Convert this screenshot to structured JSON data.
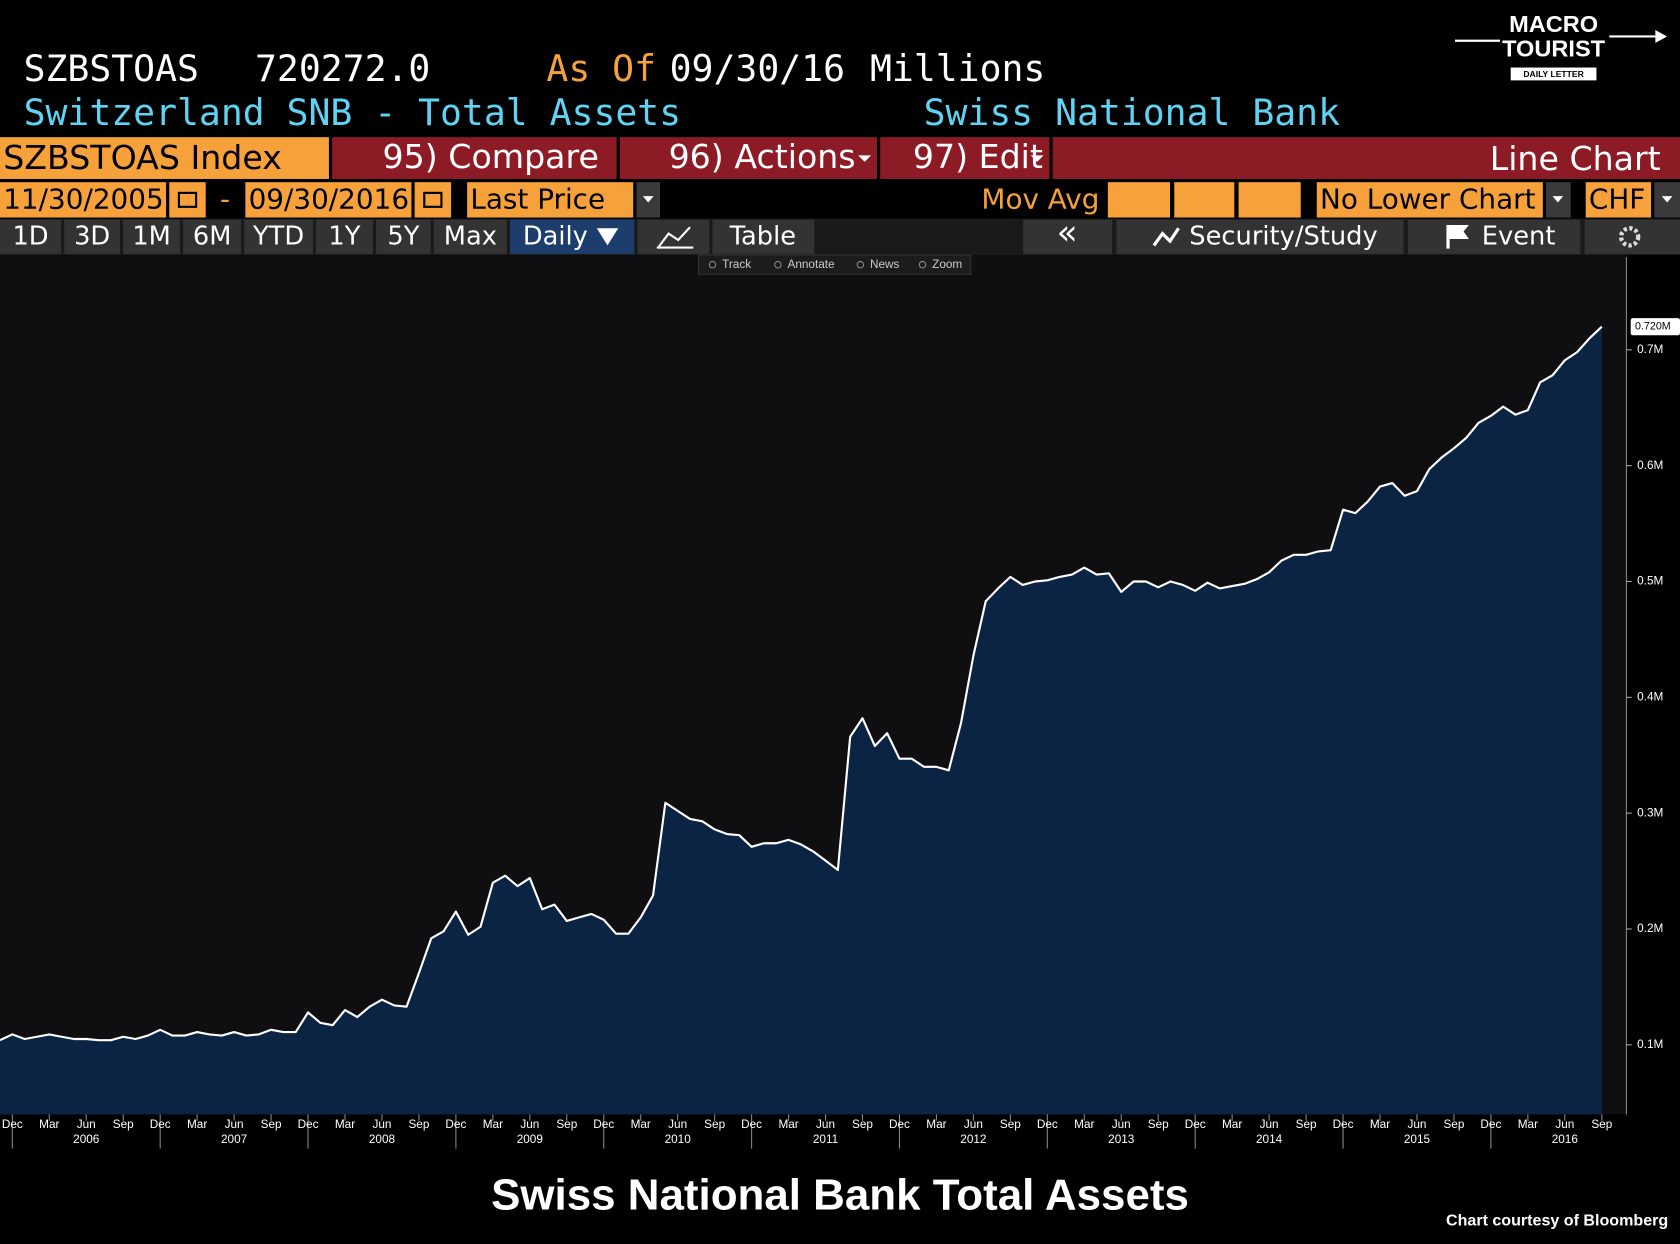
{
  "header": {
    "ticker": "SZBSTOAS",
    "value": "720272.0",
    "as_of_label": "As Of",
    "as_of_date": "09/30/16",
    "units": "Millions",
    "name": "Switzerland SNB - Total Assets",
    "source": "Swiss National Bank"
  },
  "toolbar": {
    "security": "SZBSTOAS Index",
    "compare": "95) Compare",
    "actions": "96) Actions",
    "edit": "97) Edit",
    "chart_type": "Line Chart"
  },
  "range": {
    "start": "11/30/2005",
    "dash": "-",
    "end": "09/30/2016",
    "field": "Last Price",
    "mov_avg": "Mov Avg",
    "lower_chart": "No Lower Chart",
    "currency": "CHF"
  },
  "periods": [
    "1D",
    "3D",
    "1M",
    "6M",
    "YTD",
    "1Y",
    "5Y",
    "Max"
  ],
  "frequency": "Daily",
  "table": "Table",
  "collapse": "«",
  "security_study": "Security/Study",
  "event": "Event",
  "chart_tools": [
    "Track",
    "Annotate",
    "News",
    "Zoom"
  ],
  "logo": {
    "line1": "MACRO",
    "line2": "TOURIST",
    "line3": "DAILY LETTER"
  },
  "footer": {
    "credit": "Chart courtesy of Bloomberg"
  },
  "chart_data": {
    "type": "area",
    "title": "Swiss National Bank Total Assets",
    "x": [
      "2005-11",
      "2005-12",
      "2006-01",
      "2006-02",
      "2006-03",
      "2006-04",
      "2006-05",
      "2006-06",
      "2006-07",
      "2006-08",
      "2006-09",
      "2006-10",
      "2006-11",
      "2006-12",
      "2007-01",
      "2007-02",
      "2007-03",
      "2007-04",
      "2007-05",
      "2007-06",
      "2007-07",
      "2007-08",
      "2007-09",
      "2007-10",
      "2007-11",
      "2007-12",
      "2008-01",
      "2008-02",
      "2008-03",
      "2008-04",
      "2008-05",
      "2008-06",
      "2008-07",
      "2008-08",
      "2008-09",
      "2008-10",
      "2008-11",
      "2008-12",
      "2009-01",
      "2009-02",
      "2009-03",
      "2009-04",
      "2009-05",
      "2009-06",
      "2009-07",
      "2009-08",
      "2009-09",
      "2009-10",
      "2009-11",
      "2009-12",
      "2010-01",
      "2010-02",
      "2010-03",
      "2010-04",
      "2010-05",
      "2010-06",
      "2010-07",
      "2010-08",
      "2010-09",
      "2010-10",
      "2010-11",
      "2010-12",
      "2011-01",
      "2011-02",
      "2011-03",
      "2011-04",
      "2011-05",
      "2011-06",
      "2011-07",
      "2011-08",
      "2011-09",
      "2011-10",
      "2011-11",
      "2011-12",
      "2012-01",
      "2012-02",
      "2012-03",
      "2012-04",
      "2012-05",
      "2012-06",
      "2012-07",
      "2012-08",
      "2012-09",
      "2012-10",
      "2012-11",
      "2012-12",
      "2013-01",
      "2013-02",
      "2013-03",
      "2013-04",
      "2013-05",
      "2013-06",
      "2013-07",
      "2013-08",
      "2013-09",
      "2013-10",
      "2013-11",
      "2013-12",
      "2014-01",
      "2014-02",
      "2014-03",
      "2014-04",
      "2014-05",
      "2014-06",
      "2014-07",
      "2014-08",
      "2014-09",
      "2014-10",
      "2014-11",
      "2014-12",
      "2015-01",
      "2015-02",
      "2015-03",
      "2015-04",
      "2015-05",
      "2015-06",
      "2015-07",
      "2015-08",
      "2015-09",
      "2015-10",
      "2015-11",
      "2015-12",
      "2016-01",
      "2016-02",
      "2016-03",
      "2016-04",
      "2016-05",
      "2016-06",
      "2016-07",
      "2016-08",
      "2016-09"
    ],
    "values": [
      0.104,
      0.109,
      0.105,
      0.107,
      0.109,
      0.107,
      0.105,
      0.105,
      0.104,
      0.104,
      0.107,
      0.105,
      0.108,
      0.113,
      0.108,
      0.108,
      0.111,
      0.109,
      0.108,
      0.111,
      0.108,
      0.109,
      0.113,
      0.111,
      0.111,
      0.128,
      0.119,
      0.117,
      0.13,
      0.124,
      0.133,
      0.139,
      0.134,
      0.133,
      0.162,
      0.192,
      0.198,
      0.215,
      0.195,
      0.202,
      0.24,
      0.246,
      0.237,
      0.244,
      0.217,
      0.221,
      0.207,
      0.21,
      0.213,
      0.208,
      0.196,
      0.196,
      0.21,
      0.229,
      0.309,
      0.302,
      0.295,
      0.293,
      0.286,
      0.282,
      0.281,
      0.271,
      0.274,
      0.274,
      0.277,
      0.273,
      0.267,
      0.259,
      0.251,
      0.366,
      0.382,
      0.358,
      0.369,
      0.347,
      0.347,
      0.34,
      0.34,
      0.337,
      0.378,
      0.436,
      0.483,
      0.494,
      0.504,
      0.497,
      0.5,
      0.501,
      0.504,
      0.506,
      0.512,
      0.506,
      0.507,
      0.491,
      0.5,
      0.5,
      0.495,
      0.5,
      0.497,
      0.492,
      0.499,
      0.494,
      0.496,
      0.498,
      0.502,
      0.508,
      0.518,
      0.523,
      0.523,
      0.526,
      0.527,
      0.562,
      0.559,
      0.569,
      0.582,
      0.585,
      0.574,
      0.578,
      0.597,
      0.607,
      0.615,
      0.624,
      0.637,
      0.643,
      0.651,
      0.644,
      0.648,
      0.672,
      0.678,
      0.691,
      0.698,
      0.71,
      0.72
    ],
    "value_labels": [
      null,
      null,
      null,
      null,
      null,
      null,
      null,
      null,
      null,
      null,
      null,
      null,
      null,
      null,
      null,
      null,
      null,
      null,
      null,
      null,
      null,
      null,
      null,
      null,
      null,
      null,
      null,
      null,
      null,
      null,
      null,
      null,
      null,
      null,
      null,
      null,
      null,
      null,
      null,
      null,
      null,
      null,
      null,
      null,
      null,
      null,
      null,
      null,
      null,
      null,
      null,
      null,
      null,
      null,
      null,
      null,
      null,
      null,
      null,
      null,
      null,
      null,
      null,
      null,
      null,
      null,
      null,
      null,
      null,
      null,
      null,
      null,
      null,
      null,
      null,
      null,
      null,
      null,
      null,
      null,
      null,
      null,
      null,
      null,
      null,
      null,
      null,
      null,
      null,
      null,
      null,
      null,
      null,
      null,
      null,
      null,
      null,
      null,
      null,
      null,
      null,
      null,
      null,
      null,
      null,
      null,
      null,
      null,
      null,
      null,
      null,
      null,
      null,
      null,
      null,
      null,
      null,
      null,
      null,
      null,
      null,
      null,
      null,
      null,
      null,
      null,
      null,
      null,
      null,
      null,
      "0.720M"
    ],
    "line_color": "#ffffff",
    "fill_color": "#0c2444",
    "xlim": [
      "2005-11",
      "2016-11"
    ],
    "xticks": [
      {
        "value": "2005-12",
        "label": "Dec"
      },
      {
        "value": "2006-03",
        "label": "Mar"
      },
      {
        "value": "2006-06",
        "label": "Jun"
      },
      {
        "value": "2006-09",
        "label": "Sep"
      },
      {
        "value": "2006-12",
        "label": "Dec"
      },
      {
        "value": "2007-03",
        "label": "Mar"
      },
      {
        "value": "2007-06",
        "label": "Jun"
      },
      {
        "value": "2007-09",
        "label": "Sep"
      },
      {
        "value": "2007-12",
        "label": "Dec"
      },
      {
        "value": "2008-03",
        "label": "Mar"
      },
      {
        "value": "2008-06",
        "label": "Jun"
      },
      {
        "value": "2008-09",
        "label": "Sep"
      },
      {
        "value": "2008-12",
        "label": "Dec"
      },
      {
        "value": "2009-03",
        "label": "Mar"
      },
      {
        "value": "2009-06",
        "label": "Jun"
      },
      {
        "value": "2009-09",
        "label": "Sep"
      },
      {
        "value": "2009-12",
        "label": "Dec"
      },
      {
        "value": "2010-03",
        "label": "Mar"
      },
      {
        "value": "2010-06",
        "label": "Jun"
      },
      {
        "value": "2010-09",
        "label": "Sep"
      },
      {
        "value": "2010-12",
        "label": "Dec"
      },
      {
        "value": "2011-03",
        "label": "Mar"
      },
      {
        "value": "2011-06",
        "label": "Jun"
      },
      {
        "value": "2011-09",
        "label": "Sep"
      },
      {
        "value": "2011-12",
        "label": "Dec"
      },
      {
        "value": "2012-03",
        "label": "Mar"
      },
      {
        "value": "2012-06",
        "label": "Jun"
      },
      {
        "value": "2012-09",
        "label": "Sep"
      },
      {
        "value": "2012-12",
        "label": "Dec"
      },
      {
        "value": "2013-03",
        "label": "Mar"
      },
      {
        "value": "2013-06",
        "label": "Jun"
      },
      {
        "value": "2013-09",
        "label": "Sep"
      },
      {
        "value": "2013-12",
        "label": "Dec"
      },
      {
        "value": "2014-03",
        "label": "Mar"
      },
      {
        "value": "2014-06",
        "label": "Jun"
      },
      {
        "value": "2014-09",
        "label": "Sep"
      },
      {
        "value": "2014-12",
        "label": "Dec"
      },
      {
        "value": "2015-03",
        "label": "Mar"
      },
      {
        "value": "2015-06",
        "label": "Jun"
      },
      {
        "value": "2015-09",
        "label": "Sep"
      },
      {
        "value": "2015-12",
        "label": "Dec"
      },
      {
        "value": "2016-03",
        "label": "Mar"
      },
      {
        "value": "2016-06",
        "label": "Jun"
      },
      {
        "value": "2016-09",
        "label": "Sep"
      }
    ],
    "xtick_years": [
      {
        "value": "2006-06",
        "label": "2006"
      },
      {
        "value": "2007-06",
        "label": "2007"
      },
      {
        "value": "2008-06",
        "label": "2008"
      },
      {
        "value": "2009-06",
        "label": "2009"
      },
      {
        "value": "2010-06",
        "label": "2010"
      },
      {
        "value": "2011-06",
        "label": "2011"
      },
      {
        "value": "2012-06",
        "label": "2012"
      },
      {
        "value": "2013-06",
        "label": "2013"
      },
      {
        "value": "2014-06",
        "label": "2014"
      },
      {
        "value": "2015-06",
        "label": "2015"
      },
      {
        "value": "2016-06",
        "label": "2016"
      }
    ],
    "ylim": [
      0.04,
      0.78
    ],
    "yticks": [
      {
        "value": 0.1,
        "label": "0.1M"
      },
      {
        "value": 0.2,
        "label": "0.2M"
      },
      {
        "value": 0.3,
        "label": "0.3M"
      },
      {
        "value": 0.4,
        "label": "0.4M"
      },
      {
        "value": 0.5,
        "label": "0.5M"
      },
      {
        "value": 0.6,
        "label": "0.6M"
      },
      {
        "value": 0.7,
        "label": "0.7M"
      }
    ],
    "y_axis_side": "right"
  }
}
